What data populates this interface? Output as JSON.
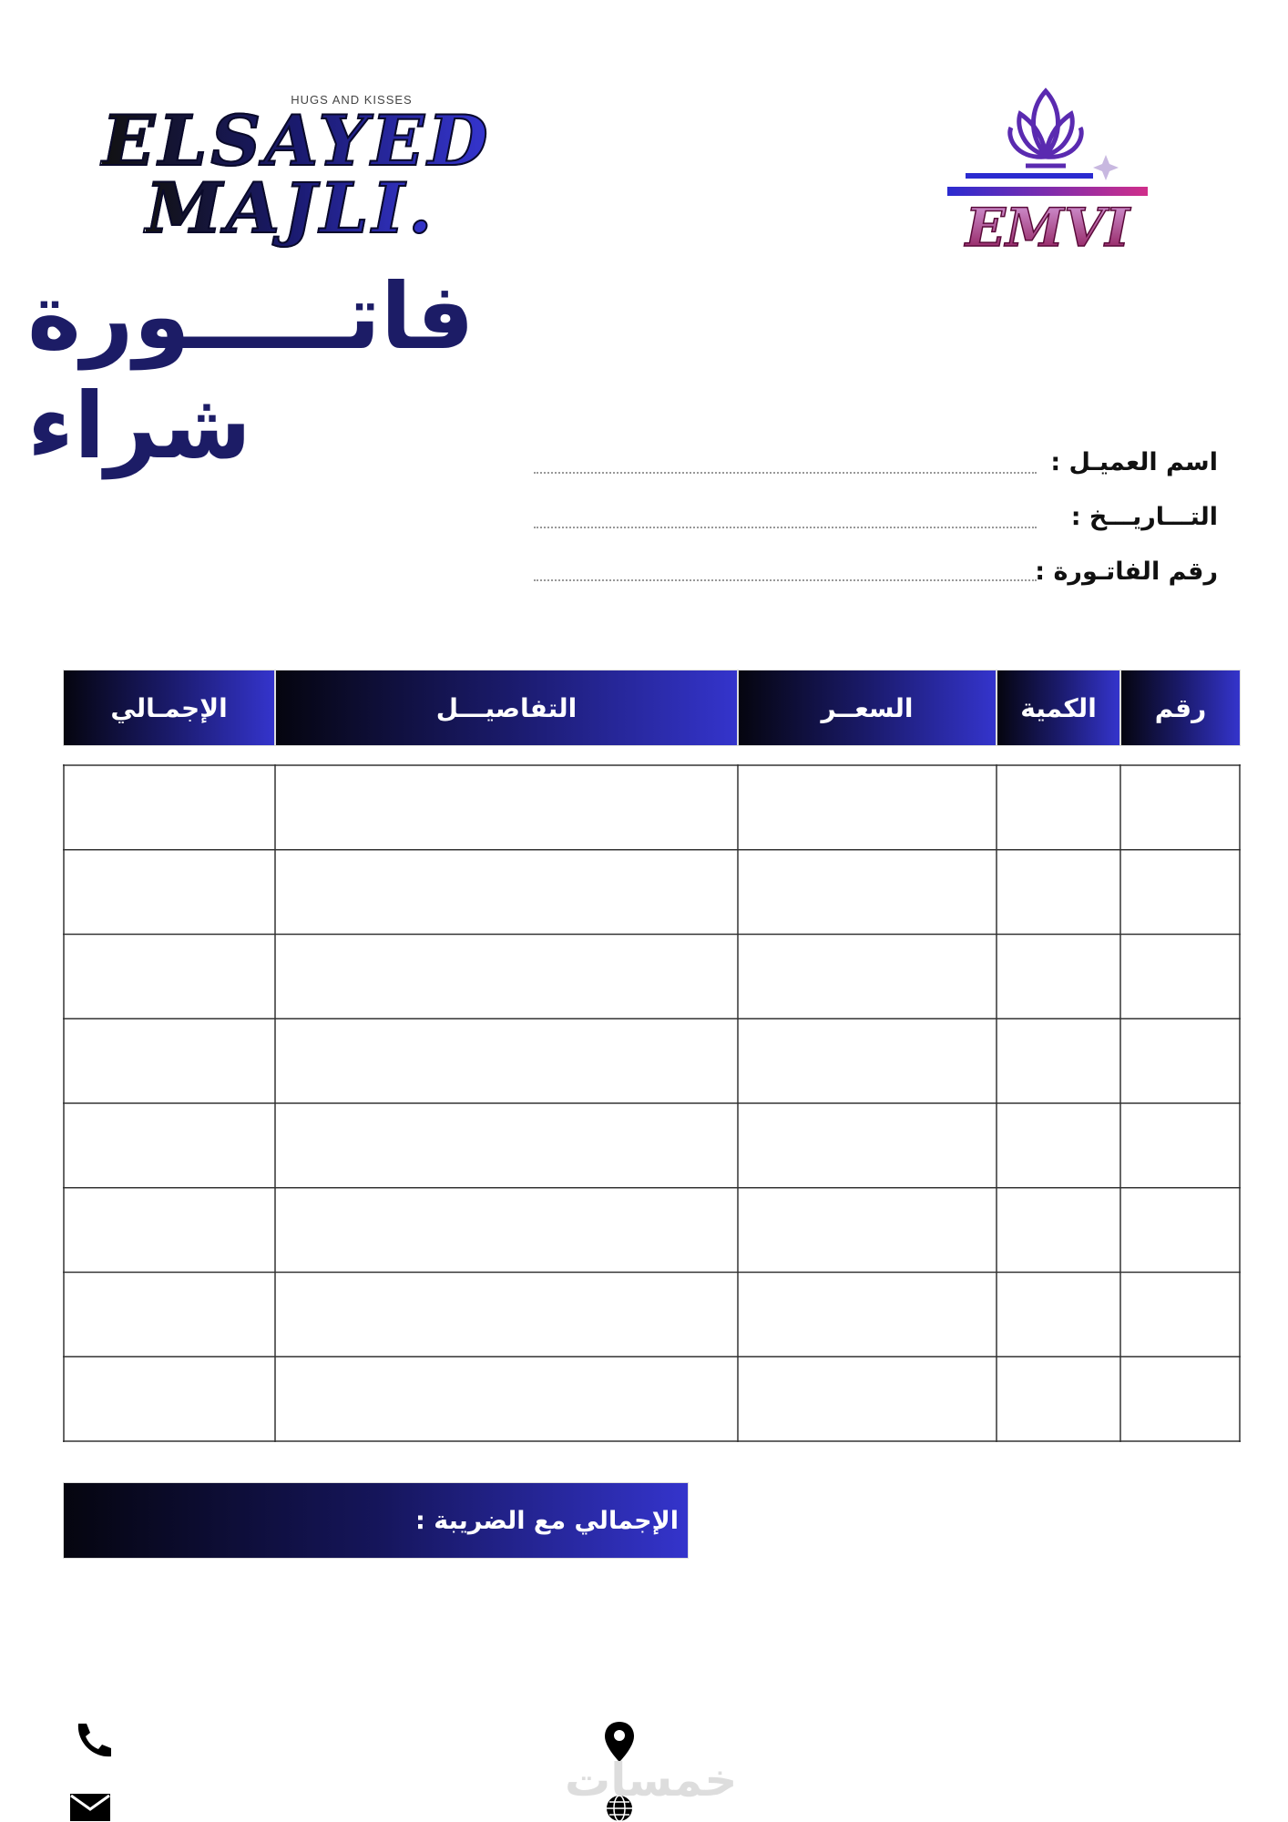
{
  "brand": {
    "tagline": "HUGS AND KISSES",
    "line1": "ELSAYED",
    "line2": "MAJLI."
  },
  "logo": {
    "text": "EMVI"
  },
  "title": "فاتـــــورة شراء",
  "fields": [
    "اسم العميـل :",
    "التـــاريـــخ :",
    "رقم الفاتـورة :"
  ],
  "table": {
    "headers": [
      "رقم",
      "الكمية",
      "السعــر",
      "التفاصيـــل",
      "الإجمـالي"
    ]
  },
  "total_label": "الإجمالي مع الضريبة :",
  "watermark": "خمسات"
}
